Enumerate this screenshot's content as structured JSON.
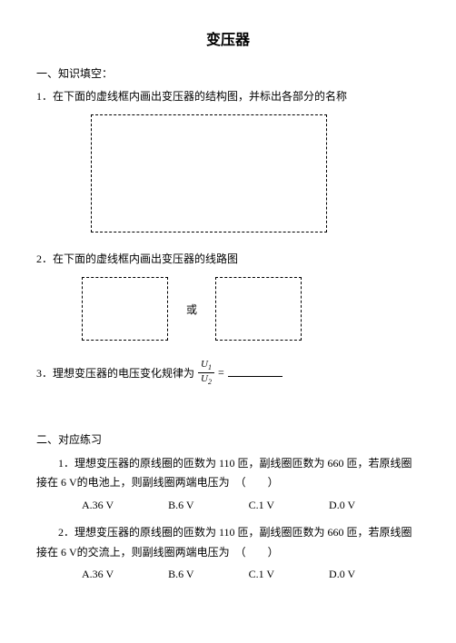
{
  "title": "变压器",
  "section1": {
    "heading": "一、知识填空：",
    "q1": "1．在下面的虚线框内画出变压器的结构图，并标出各部分的名称",
    "q2": "2．在下面的虚线框内画出变压器的线路图",
    "or_label": "或",
    "q3_prefix": "3．理想变压器的电压变化规律为",
    "q3_numerator": "U",
    "q3_num_sub": "1",
    "q3_denominator": "U",
    "q3_den_sub": "2",
    "q3_equals": "="
  },
  "section2": {
    "heading": "二、对应练习",
    "p1": "1．理想变压器的原线圈的匝数为 110 匝，副线圈匝数为 660 匝，若原线圈接在 6 V的电池上，则副线圈两端电压为　（　　）",
    "p2": "2．理想变压器的原线圈的匝数为 110 匝，副线圈匝数为 660 匝，若原线圈接在 6 V的交流上，则副线圈两端电压为　（　　）",
    "choices": {
      "a": "A.36 V",
      "b": "B.6 V",
      "c": "C.1 V",
      "d": "D.0 V"
    }
  },
  "styles": {
    "background_color": "#ffffff",
    "text_color": "#000000",
    "title_fontsize": 16,
    "body_fontsize": 12,
    "box_border": "1px dashed #000000"
  }
}
